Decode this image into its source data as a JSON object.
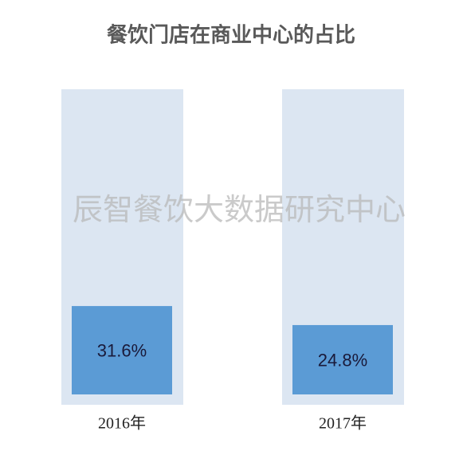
{
  "chart_data": {
    "type": "bar",
    "title": "餐饮门店在商业中心的占比",
    "categories": [
      "2016年",
      "2017年"
    ],
    "values": [
      31.6,
      24.8
    ],
    "value_labels": [
      "31.6%",
      "24.8%"
    ],
    "color": "#5b9bd5",
    "ylim": [
      0,
      100
    ],
    "watermark": "辰智餐饮大数据研究中心"
  }
}
